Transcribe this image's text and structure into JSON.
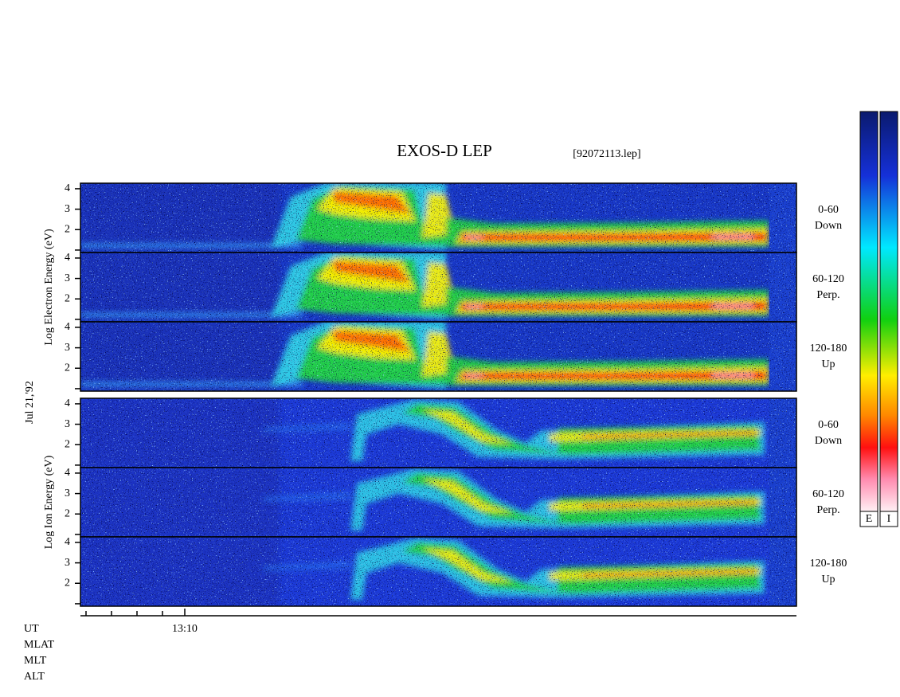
{
  "header": {
    "title": "EXOS-D LEP",
    "file": "[92072113.lep]"
  },
  "date_label": "Jul 21,'92",
  "energy_axis": {
    "ylim": [
      0.88,
      4.27
    ],
    "unlabeled_tick": 1,
    "ticks": [
      2,
      3,
      4
    ]
  },
  "groups": [
    {
      "label": "Log Electron Energy (eV)",
      "species": "electron",
      "panels": [
        {
          "angle": "0-60",
          "direction": "Down"
        },
        {
          "angle": "60-120",
          "direction": "Perp."
        },
        {
          "angle": "120-180",
          "direction": "Up"
        }
      ]
    },
    {
      "label": "Log Ion Energy (eV)",
      "species": "ion",
      "panels": [
        {
          "angle": "0-60",
          "direction": "Down"
        },
        {
          "angle": "60-120",
          "direction": "Perp."
        },
        {
          "angle": "120-180",
          "direction": "Up"
        }
      ]
    }
  ],
  "time_axis": {
    "tick_label": "13:10"
  },
  "row_labels": [
    "UT",
    "MLAT",
    "MLT",
    "ALT"
  ],
  "colorbar_labels": [
    "E",
    "I"
  ]
}
